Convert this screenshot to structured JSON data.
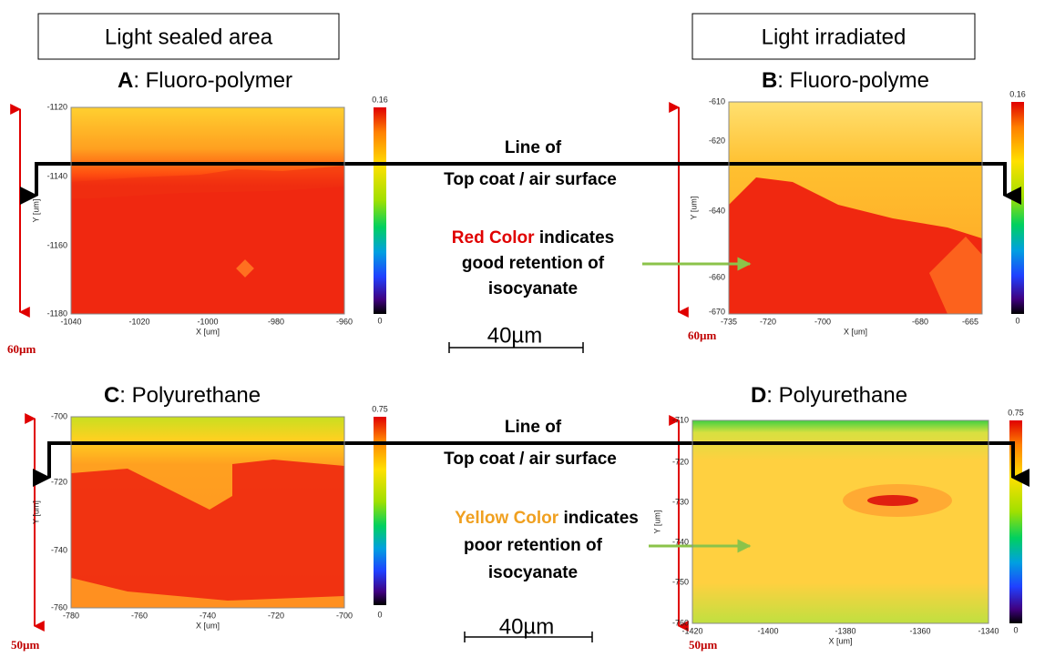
{
  "header": {
    "left_box": "Light sealed area",
    "right_box": "Light irradiated"
  },
  "panels": [
    {
      "label": "A",
      "title": ": Fluoro-polymer",
      "x_axis_label": "X [um]",
      "y_axis_label": "Y [um]",
      "xticks": [
        "-1040",
        "-1020",
        "-1000",
        "-980",
        "-960"
      ],
      "yticks": [
        "-1120",
        "-1140",
        "-1160",
        "-1180"
      ],
      "colorbar_max": "0.16",
      "colorbar_min": "0",
      "scale": "60µm"
    },
    {
      "label": "B",
      "title": ": Fluoro-polyme",
      "x_axis_label": "X [um]",
      "y_axis_label": "Y [um]",
      "xticks": [
        "-735",
        "-720",
        "-700",
        "-680",
        "-665"
      ],
      "yticks": [
        "-610",
        "-620",
        "-640",
        "-660",
        "-670"
      ],
      "colorbar_max": "0.16",
      "colorbar_min": "0",
      "scale": "60µm"
    },
    {
      "label": "C",
      "title": ": Polyurethane",
      "x_axis_label": "X [um]",
      "y_axis_label": "Y [um]",
      "xticks": [
        "-780",
        "-760",
        "-740",
        "-720",
        "-700"
      ],
      "yticks": [
        "-700",
        "-720",
        "-740",
        "-760"
      ],
      "colorbar_max": "0.75",
      "colorbar_min": "0",
      "scale": "50µm"
    },
    {
      "label": "D",
      "title": ": Polyurethane",
      "x_axis_label": "X [um]",
      "y_axis_label": "Y [um]",
      "xticks": [
        "-1420",
        "-1400",
        "-1380",
        "-1360",
        "-1340"
      ],
      "yticks": [
        "-710",
        "-720",
        "-730",
        "-740",
        "-750",
        "-760"
      ],
      "colorbar_max": "0.75",
      "colorbar_min": "0",
      "scale": "50µm"
    }
  ],
  "annotations": [
    {
      "line_1": "Line of",
      "line_2": "Top coat / air surface",
      "color_word": "Red Color",
      "rest_1": " indicates",
      "rest_2": "good retention of",
      "rest_3": "isocyanate",
      "scale_bar": "40µm"
    },
    {
      "line_1": "Line of",
      "line_2": "Top coat / air surface",
      "color_word": "Yellow Color",
      "rest_1": " indicates",
      "rest_2": "poor retention of",
      "rest_3": "isocyanate",
      "scale_bar": "40µm"
    }
  ]
}
